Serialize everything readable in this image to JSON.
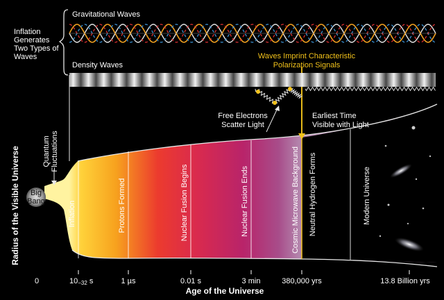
{
  "labels": {
    "inflation_generates": [
      "Inflation",
      "Generates",
      "Two Types of",
      "Waves"
    ],
    "gravitational_waves": "Gravitational Waves",
    "density_waves": "Density Waves",
    "waves_imprint": [
      "Waves Imprint Characteristic",
      "Polarization Signals"
    ],
    "free_electrons": [
      "Free Electrons",
      "Scatter Light"
    ],
    "earliest_time": [
      "Earliest Time",
      "Visible with Light"
    ],
    "quantum_fluctuations": [
      "Quantum",
      "Fluctuations"
    ],
    "big_bang": [
      "Big",
      "Bang"
    ],
    "y_axis": "Radius of the Visible Universe",
    "x_axis": "Age of the Universe"
  },
  "eras": [
    {
      "label": "Inflation"
    },
    {
      "label": "Protons Formed"
    },
    {
      "label": "Nuclear Fusion Begins"
    },
    {
      "label": "Nuclear Fusion Ends"
    },
    {
      "label": "Cosmic Microwave Background"
    },
    {
      "label": "Neutral Hydrogen Forms"
    },
    {
      "label": "Modern Universe"
    }
  ],
  "ticks": [
    {
      "label": "0"
    },
    {
      "label": "10",
      "sup": "−32",
      "suffix": " s"
    },
    {
      "label": "1 µs"
    },
    {
      "label": "0.01 s"
    },
    {
      "label": "3 min"
    },
    {
      "label": "380,000 yrs"
    },
    {
      "label": "13.8 Billion yrs"
    }
  ],
  "colors": {
    "background": "#000000",
    "accent_yellow": "#f2c21b",
    "wave_orange": "#f0a020",
    "wave_blue": "#3a8fd0",
    "wave_red": "#d83030",
    "wave_white": "#e6e6e6",
    "gradient": [
      "#fff3a0",
      "#ffd23a",
      "#f7a21e",
      "#ec3b2e",
      "#d92a4e",
      "#b8246a",
      "#a84d8a",
      "#b58bb0"
    ]
  }
}
